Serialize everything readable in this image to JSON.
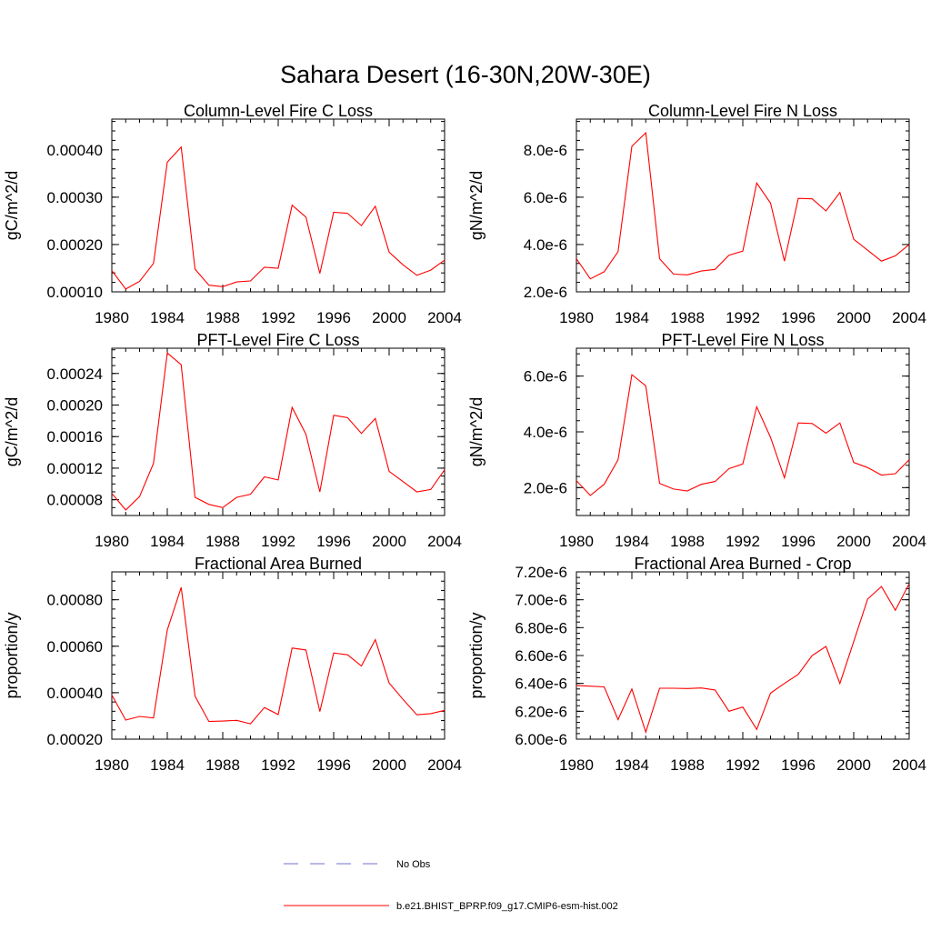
{
  "title": "Sahara Desert (16-30N,20W-30E)",
  "colors": {
    "model": "#ff0000",
    "obs": "#7070d0",
    "axis": "#000000"
  },
  "legend": [
    {
      "label": "No Obs",
      "style": "dashed",
      "color": "#7070d0"
    },
    {
      "label": "b.e21.BHIST_BPRP.f09_g17.CMIP6-esm-hist.002",
      "style": "solid",
      "color": "#ff0000"
    }
  ],
  "chart_data": [
    {
      "type": "line",
      "title": "Column-Level Fire C Loss",
      "ylabel": "gC/m^2/d",
      "xlim": [
        1980,
        2004
      ],
      "ylim": [
        0.0001,
        0.000465
      ],
      "x_ticks": [
        1980,
        1984,
        1988,
        1992,
        1996,
        2000,
        2004
      ],
      "x_tick_labels": [
        "1980",
        "1984",
        "1988",
        "1992",
        "1996",
        "2000",
        "2004"
      ],
      "y_ticks": [
        0.0001,
        0.0002,
        0.0003,
        0.0004
      ],
      "y_tick_labels": [
        "0.00010",
        "0.00020",
        "0.00030",
        "0.00040"
      ],
      "y_minor_step": 2e-05,
      "x": [
        1980,
        1981,
        1982,
        1983,
        1984,
        1985,
        1986,
        1987,
        1988,
        1989,
        1990,
        1991,
        1992,
        1993,
        1994,
        1995,
        1996,
        1997,
        1998,
        1999,
        2000,
        2001,
        2002,
        2003,
        2004
      ],
      "series": [
        {
          "values": [
            0.000145,
            0.000106,
            0.000122,
            0.00016,
            0.000374,
            0.000406,
            0.000148,
            0.000114,
            0.000111,
            0.000121,
            0.000123,
            0.000152,
            0.00015,
            0.000283,
            0.000258,
            0.000139,
            0.000268,
            0.000266,
            0.00024,
            0.000281,
            0.000184,
            0.000157,
            0.000135,
            0.000146,
            0.000167
          ]
        }
      ]
    },
    {
      "type": "line",
      "title": "Column-Level Fire N Loss",
      "ylabel": "gN/m^2/d",
      "xlim": [
        1980,
        2004
      ],
      "ylim": [
        2e-06,
        9.3e-06
      ],
      "x_ticks": [
        1980,
        1984,
        1988,
        1992,
        1996,
        2000,
        2004
      ],
      "x_tick_labels": [
        "1980",
        "1984",
        "1988",
        "1992",
        "1996",
        "2000",
        "2004"
      ],
      "y_ticks": [
        2e-06,
        4e-06,
        6e-06,
        8e-06
      ],
      "y_tick_labels": [
        "2.0e-6",
        "4.0e-6",
        "6.0e-6",
        "8.0e-6"
      ],
      "y_minor_step": 4e-07,
      "x": [
        1980,
        1981,
        1982,
        1983,
        1984,
        1985,
        1986,
        1987,
        1988,
        1989,
        1990,
        1991,
        1992,
        1993,
        1994,
        1995,
        1996,
        1997,
        1998,
        1999,
        2000,
        2001,
        2002,
        2003,
        2004
      ],
      "series": [
        {
          "values": [
            3.4e-06,
            2.55e-06,
            2.85e-06,
            3.7e-06,
            8.15e-06,
            8.72e-06,
            3.4e-06,
            2.75e-06,
            2.72e-06,
            2.88e-06,
            2.95e-06,
            3.55e-06,
            3.72e-06,
            6.6e-06,
            5.75e-06,
            3.3e-06,
            5.95e-06,
            5.93e-06,
            5.42e-06,
            6.2e-06,
            4.22e-06,
            3.76e-06,
            3.3e-06,
            3.52e-06,
            4e-06
          ]
        }
      ]
    },
    {
      "type": "line",
      "title": "PFT-Level Fire C Loss",
      "ylabel": "gC/m^2/d",
      "xlim": [
        1980,
        2004
      ],
      "ylim": [
        6e-05,
        0.000272
      ],
      "x_ticks": [
        1980,
        1984,
        1988,
        1992,
        1996,
        2000,
        2004
      ],
      "x_tick_labels": [
        "1980",
        "1984",
        "1988",
        "1992",
        "1996",
        "2000",
        "2004"
      ],
      "y_ticks": [
        8e-05,
        0.00012,
        0.00016,
        0.0002,
        0.00024
      ],
      "y_tick_labels": [
        "0.00008",
        "0.00012",
        "0.00016",
        "0.00020",
        "0.00024"
      ],
      "y_minor_step": 1e-05,
      "x": [
        1980,
        1981,
        1982,
        1983,
        1984,
        1985,
        1986,
        1987,
        1988,
        1989,
        1990,
        1991,
        1992,
        1993,
        1994,
        1995,
        1996,
        1997,
        1998,
        1999,
        2000,
        2001,
        2002,
        2003,
        2004
      ],
      "series": [
        {
          "values": [
            8.8e-05,
            6.7e-05,
            8.4e-05,
            0.000126,
            0.000266,
            0.000251,
            8.3e-05,
            7.4e-05,
            7e-05,
            8.3e-05,
            8.7e-05,
            0.000109,
            0.000105,
            0.000197,
            0.000163,
            9e-05,
            0.000187,
            0.000184,
            0.000164,
            0.000183,
            0.000116,
            0.000103,
            9e-05,
            9.3e-05,
            0.000118
          ]
        }
      ]
    },
    {
      "type": "line",
      "title": "PFT-Level Fire N Loss",
      "ylabel": "gN/m^2/d",
      "xlim": [
        1980,
        2004
      ],
      "ylim": [
        1e-06,
        7e-06
      ],
      "x_ticks": [
        1980,
        1984,
        1988,
        1992,
        1996,
        2000,
        2004
      ],
      "x_tick_labels": [
        "1980",
        "1984",
        "1988",
        "1992",
        "1996",
        "2000",
        "2004"
      ],
      "y_ticks": [
        2e-06,
        4e-06,
        6e-06
      ],
      "y_tick_labels": [
        "2.0e-6",
        "4.0e-6",
        "6.0e-6"
      ],
      "y_minor_step": 4e-07,
      "x": [
        1980,
        1981,
        1982,
        1983,
        1984,
        1985,
        1986,
        1987,
        1988,
        1989,
        1990,
        1991,
        1992,
        1993,
        1994,
        1995,
        1996,
        1997,
        1998,
        1999,
        2000,
        2001,
        2002,
        2003,
        2004
      ],
      "series": [
        {
          "values": [
            2.25e-06,
            1.72e-06,
            2.12e-06,
            3e-06,
            6.05e-06,
            5.65e-06,
            2.15e-06,
            1.95e-06,
            1.88e-06,
            2.12e-06,
            2.22e-06,
            2.68e-06,
            2.85e-06,
            4.9e-06,
            3.8e-06,
            2.35e-06,
            4.32e-06,
            4.3e-06,
            3.95e-06,
            4.32e-06,
            2.9e-06,
            2.72e-06,
            2.45e-06,
            2.5e-06,
            3e-06
          ]
        }
      ]
    },
    {
      "type": "line",
      "title": "Fractional Area Burned",
      "ylabel": "proportion/y",
      "xlim": [
        1980,
        2004
      ],
      "ylim": [
        0.0002,
        0.00092
      ],
      "x_ticks": [
        1980,
        1984,
        1988,
        1992,
        1996,
        2000,
        2004
      ],
      "x_tick_labels": [
        "1980",
        "1984",
        "1988",
        "1992",
        "1996",
        "2000",
        "2004"
      ],
      "y_ticks": [
        0.0002,
        0.0004,
        0.0006,
        0.0008
      ],
      "y_tick_labels": [
        "0.00020",
        "0.00040",
        "0.00060",
        "0.00080"
      ],
      "y_minor_step": 4e-05,
      "x": [
        1980,
        1981,
        1982,
        1983,
        1984,
        1985,
        1986,
        1987,
        1988,
        1989,
        1990,
        1991,
        1992,
        1993,
        1994,
        1995,
        1996,
        1997,
        1998,
        1999,
        2000,
        2001,
        2002,
        2003,
        2004
      ],
      "series": [
        {
          "values": [
            0.00039,
            0.000282,
            0.000298,
            0.000291,
            0.00067,
            0.000853,
            0.000385,
            0.000276,
            0.000278,
            0.000281,
            0.000266,
            0.000336,
            0.000306,
            0.000592,
            0.000584,
            0.000319,
            0.000571,
            0.000563,
            0.000515,
            0.000628,
            0.000442,
            0.000371,
            0.000305,
            0.00031,
            0.000324
          ]
        }
      ]
    },
    {
      "type": "line",
      "title": "Fractional Area Burned - Crop",
      "ylabel": "proportion/y",
      "xlim": [
        1980,
        2004
      ],
      "ylim": [
        6e-06,
        7.2e-06
      ],
      "x_ticks": [
        1980,
        1984,
        1988,
        1992,
        1996,
        2000,
        2004
      ],
      "x_tick_labels": [
        "1980",
        "1984",
        "1988",
        "1992",
        "1996",
        "2000",
        "2004"
      ],
      "y_ticks": [
        6e-06,
        6.2e-06,
        6.4e-06,
        6.6e-06,
        6.8e-06,
        7e-06,
        7.2e-06
      ],
      "y_tick_labels": [
        "6.00e-6",
        "6.20e-6",
        "6.40e-6",
        "6.60e-6",
        "6.80e-6",
        "7.00e-6",
        "7.20e-6"
      ],
      "y_minor_step": 4e-08,
      "x": [
        1980,
        1981,
        1982,
        1983,
        1984,
        1985,
        1986,
        1987,
        1988,
        1989,
        1990,
        1991,
        1992,
        1993,
        1994,
        1995,
        1996,
        1997,
        1998,
        1999,
        2000,
        2001,
        2002,
        2003,
        2004
      ],
      "series": [
        {
          "values": [
            6.385e-06,
            6.38e-06,
            6.375e-06,
            6.14e-06,
            6.36e-06,
            6.05e-06,
            6.365e-06,
            6.365e-06,
            6.363e-06,
            6.367e-06,
            6.353e-06,
            6.2e-06,
            6.23e-06,
            6.07e-06,
            6.33e-06,
            6.4e-06,
            6.465e-06,
            6.6e-06,
            6.665e-06,
            6.4e-06,
            6.7e-06,
            7.005e-06,
            7.095e-06,
            6.925e-06,
            7.115e-06
          ]
        }
      ]
    }
  ]
}
